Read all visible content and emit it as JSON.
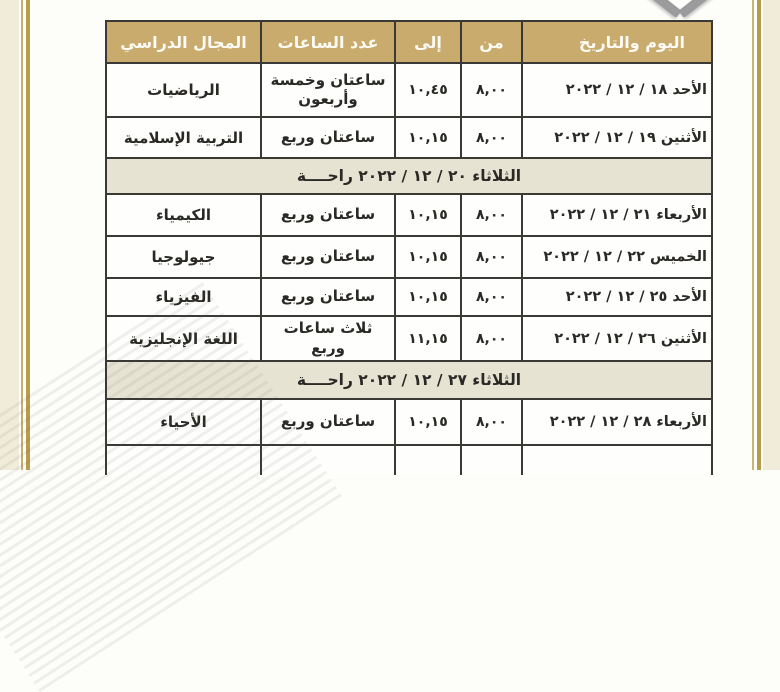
{
  "colors": {
    "header_bg": "#c8ab6d",
    "header_text": "#fdfbf4",
    "rest_row_bg": "#e7e3d3",
    "table_border": "#3b3936",
    "frame_gold": "#b79c4c",
    "page_cream": "#f1ecda"
  },
  "table": {
    "headers": {
      "day_date": "اليوم والتاريخ",
      "from": "من",
      "to": "إلى",
      "hours_count": "عدد الساعات",
      "subject": "المجال الدراسي"
    },
    "rows": [
      {
        "type": "exam",
        "date": "الأحد ١٨ / ١٢ / ٢٠٢٢",
        "from": "٨,٠٠",
        "to": "١٠,٤٥",
        "hours": "ساعتان وخمسة وأربعون",
        "subject": "الرياضيات"
      },
      {
        "type": "exam",
        "date": "الأثنين ١٩ / ١٢ / ٢٠٢٢",
        "from": "٨,٠٠",
        "to": "١٠,١٥",
        "hours": "ساعتان وربع",
        "subject": "التربية الإسلامية"
      },
      {
        "type": "rest",
        "label": "الثلاثاء ٢٠ / ١٢ / ٢٠٢٢  راحــــة"
      },
      {
        "type": "exam",
        "date": "الأربعاء ٢١ / ١٢ / ٢٠٢٢",
        "from": "٨,٠٠",
        "to": "١٠,١٥",
        "hours": "ساعتان وربع",
        "subject": "الكيمياء"
      },
      {
        "type": "exam",
        "date": "الخميس ٢٢ / ١٢ / ٢٠٢٢",
        "from": "٨,٠٠",
        "to": "١٠,١٥",
        "hours": "ساعتان وربع",
        "subject": "جيولوجيا"
      },
      {
        "type": "exam",
        "date": "الأحد ٢٥ / ١٢ / ٢٠٢٢",
        "from": "٨,٠٠",
        "to": "١٠,١٥",
        "hours": "ساعتان وربع",
        "subject": "الفيزياء"
      },
      {
        "type": "exam",
        "date": "الأثنين ٢٦ / ١٢ / ٢٠٢٢",
        "from": "٨,٠٠",
        "to": "١١,١٥",
        "hours": "ثلاث ساعات وربع",
        "subject": "اللغة الإنجليزية"
      },
      {
        "type": "rest",
        "label": "الثلاثاء ٢٧ / ١٢ / ٢٠٢٢  راحــــة"
      },
      {
        "type": "exam",
        "date": "الأربعاء ٢٨ / ١٢ / ٢٠٢٢",
        "from": "٨,٠٠",
        "to": "١٠,١٥",
        "hours": "ساعتان وربع",
        "subject": "الأحياء"
      },
      {
        "type": "partial",
        "date": "",
        "from": "",
        "to": "",
        "hours": "",
        "subject": ""
      }
    ]
  }
}
